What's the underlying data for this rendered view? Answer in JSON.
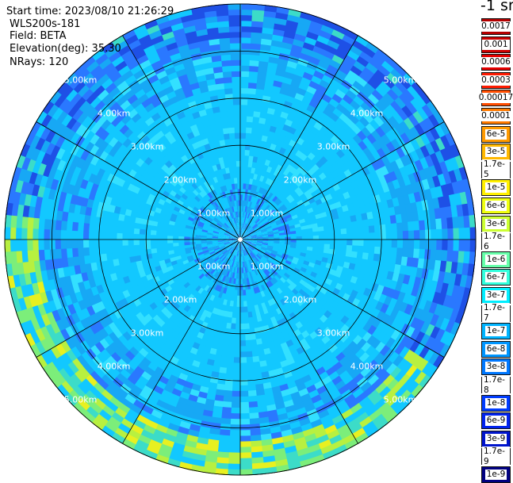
{
  "info": {
    "start_time": "Start time: 2023/08/10 21:26:29",
    "instrument": "WLS200s-181",
    "field": "Field: BETA",
    "elevation": "Elevation(deg): 35.30",
    "nrays": "NRays: 120"
  },
  "colorbar": {
    "unit": "-1 sr",
    "ticks": [
      "0.0017",
      "0.001",
      "0.0006",
      "0.0003",
      "0.00017",
      "0.0001",
      "6e-5",
      "3e-5",
      "1.7e-5",
      "1e-5",
      "6e-6",
      "3e-6",
      "1.7e-6",
      "1e-6",
      "6e-7",
      "3e-7",
      "1.7e-7",
      "1e-7",
      "6e-8",
      "3e-8",
      "1.7e-8",
      "1e-8",
      "6e-9",
      "3e-9",
      "1.7e-9",
      "1e-9"
    ],
    "colors": [
      "#b30000",
      "#cc0000",
      "#e60000",
      "#ff1a00",
      "#ff4d00",
      "#ff7a00",
      "#ff9a00",
      "#ffb800",
      "#ffd400",
      "#fff000",
      "#eeff10",
      "#ccff33",
      "#99ff66",
      "#66ffaa",
      "#33ffdd",
      "#00eeff",
      "#00d2ff",
      "#00b4ff",
      "#0096ff",
      "#0078ff",
      "#005aff",
      "#003cff",
      "#0022ee",
      "#0014cc",
      "#000aa6",
      "#000080"
    ]
  },
  "chart_data": {
    "type": "heatmap",
    "projection": "polar (PPI scan)",
    "field": "BETA",
    "elevation_deg": 35.3,
    "nrays": 120,
    "range_rings_km": [
      1.0,
      2.0,
      3.0,
      4.0,
      5.0
    ],
    "range_labels": [
      "1.00km",
      "2.00km",
      "3.00km",
      "4.00km",
      "5.00km"
    ],
    "azimuth_spokes_deg": [
      0,
      30,
      60,
      90,
      120,
      150,
      180,
      210,
      240,
      270,
      300,
      330
    ],
    "max_range_km": 5.0,
    "colorscale": "log, 1e-9 to 0.0017 sr-1",
    "typical_value": "1e-7 to 3e-7 (mostly cyan/blue)",
    "enhanced_regions": [
      {
        "description": "arc of higher backscatter near outer range toward south/southwest",
        "range_km": [
          4.2,
          5.0
        ],
        "value": "1e-6 to 3e-6"
      },
      {
        "description": "small patch on west side",
        "range_km": [
          4.6,
          4.8
        ],
        "value": "1e-5"
      }
    ]
  }
}
